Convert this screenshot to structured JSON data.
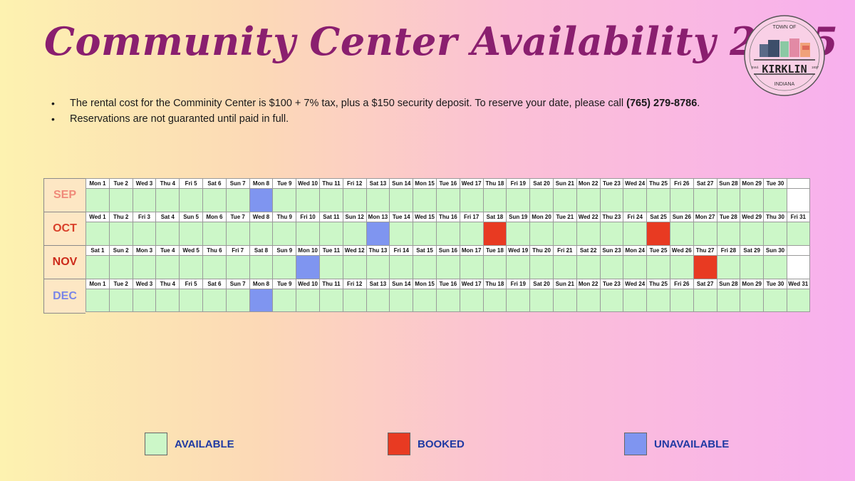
{
  "title": "Community Center Availability 2025",
  "logo": {
    "top_text": "TOWN OF",
    "name": "KIRKLIN",
    "bottom_text": "INDIANA",
    "est_left": "Estd.",
    "est_right": "1837"
  },
  "bullets": [
    {
      "text": "The rental cost for the Comminity Center is $100 + 7% tax, plus a $150 security deposit. To reserve your date, please call ",
      "bold": "(765) 279-8786",
      "tail": "."
    },
    {
      "text": "Reservations are not guaranted until paid in full.",
      "bold": "",
      "tail": ""
    }
  ],
  "colors": {
    "available": "#ccf7c8",
    "booked": "#e83a22",
    "unavailable": "#7f95f0",
    "month_sep": "#f08a7a",
    "month_oct": "#d9402a",
    "month_nov": "#cc2a1a",
    "month_dec": "#7a86e8"
  },
  "months": [
    {
      "label": "SEP",
      "label_color": "#f08a7a",
      "days": [
        "Mon 1",
        "Tue 2",
        "Wed 3",
        "Thu 4",
        "Fri 5",
        "Sat 6",
        "Sun 7",
        "Mon 8",
        "Tue 9",
        "Wed 10",
        "Thu 11",
        "Fri 12",
        "Sat 13",
        "Sun 14",
        "Mon 15",
        "Tue 16",
        "Wed 17",
        "Thu 18",
        "Fri 19",
        "Sat 20",
        "Sun 21",
        "Mon 22",
        "Tue 23",
        "Wed 24",
        "Thu 25",
        "Fri 26",
        "Sat 27",
        "Sun 28",
        "Mon 29",
        "Tue 30",
        ""
      ],
      "status": {
        "8": "unavailable"
      }
    },
    {
      "label": "OCT",
      "label_color": "#d9402a",
      "days": [
        "Wed 1",
        "Thu 2",
        "Fri 3",
        "Sat 4",
        "Sun 5",
        "Mon 6",
        "Tue 7",
        "Wed 8",
        "Thu 9",
        "Fri 10",
        "Sat 11",
        "Sun 12",
        "Mon 13",
        "Tue 14",
        "Wed 15",
        "Thu 16",
        "Fri 17",
        "Sat 18",
        "Sun 19",
        "Mon 20",
        "Tue 21",
        "Wed 22",
        "Thu 23",
        "Fri 24",
        "Sat 25",
        "Sun 26",
        "Mon 27",
        "Tue 28",
        "Wed 29",
        "Thu 30",
        "Fri 31"
      ],
      "status": {
        "13": "unavailable",
        "18": "booked",
        "25": "booked"
      }
    },
    {
      "label": "NOV",
      "label_color": "#cc2a1a",
      "days": [
        "Sat 1",
        "Sun 2",
        "Mon 3",
        "Tue 4",
        "Wed 5",
        "Thu 6",
        "Fri 7",
        "Sat 8",
        "Sun 9",
        "Mon 10",
        "Tue 11",
        "Wed 12",
        "Thu 13",
        "Fri 14",
        "Sat 15",
        "Sun 16",
        "Mon 17",
        "Tue 18",
        "Wed 19",
        "Thu 20",
        "Fri 21",
        "Sat 22",
        "Sun 23",
        "Mon 24",
        "Tue 25",
        "Wed 26",
        "Thu 27",
        "Fri 28",
        "Sat 29",
        "Sun 30",
        ""
      ],
      "status": {
        "10": "unavailable",
        "27": "booked"
      }
    },
    {
      "label": "DEC",
      "label_color": "#7a86e8",
      "days": [
        "Mon 1",
        "Tue 2",
        "Wed 3",
        "Thu 4",
        "Fri 5",
        "Sat 6",
        "Sun 7",
        "Mon 8",
        "Tue 9",
        "Wed 10",
        "Thu 11",
        "Fri 12",
        "Sat 13",
        "Sun 14",
        "Mon 15",
        "Tue 16",
        "Wed 17",
        "Thu 18",
        "Fri 19",
        "Sat 20",
        "Sun 21",
        "Mon 22",
        "Tue 23",
        "Wed 24",
        "Thu 25",
        "Fri 26",
        "Sat 27",
        "Sun 28",
        "Mon 29",
        "Tue 30",
        "Wed 31"
      ],
      "status": {
        "8": "unavailable"
      }
    }
  ],
  "legend": [
    {
      "key": "available",
      "label": "AVAILABLE",
      "color": "#ccf7c8"
    },
    {
      "key": "booked",
      "label": "BOOKED",
      "color": "#e83a22"
    },
    {
      "key": "unavailable",
      "label": "UNAVAILABLE",
      "color": "#7f95f0"
    }
  ]
}
